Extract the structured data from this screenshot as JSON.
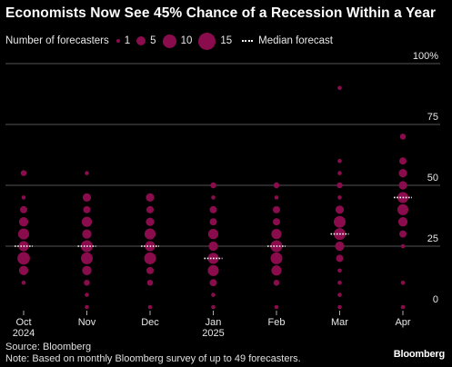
{
  "title": "Economists Now See 45% Chance of a Recession Within a Year",
  "legend": {
    "size_label": "Number of forecasters",
    "sizes": [
      1,
      5,
      10,
      15
    ],
    "size_labels": [
      "1",
      "5",
      "10",
      "15"
    ],
    "median_label": "Median forecast"
  },
  "source": "Source: Bloomberg",
  "note": "Note: Based on monthly Bloomberg survey of up to 49 forecasters.",
  "brand": "Bloomberg",
  "colors": {
    "bubble": "#8a0c4d",
    "grid": "#555555",
    "median": "#ffffff",
    "background": "#000000"
  },
  "chart_data": {
    "type": "scatter",
    "title": "Economists Now See 45% Chance of a Recession Within a Year",
    "xlabel": "",
    "ylabel": "",
    "ylim": [
      0,
      100
    ],
    "y_ticks": [
      0,
      25,
      50,
      75,
      100
    ],
    "y_tick_labels": [
      "0",
      "25",
      "50",
      "75",
      "100%"
    ],
    "grid": true,
    "categories": [
      "Oct 2024",
      "Nov",
      "Dec",
      "Jan 2025",
      "Feb",
      "Mar",
      "Apr"
    ],
    "x_tick_labels": [
      [
        "Oct",
        "2024"
      ],
      [
        "Nov"
      ],
      [
        "Dec"
      ],
      [
        "Jan",
        "2025"
      ],
      [
        "Feb"
      ],
      [
        "Mar"
      ],
      [
        "Apr"
      ]
    ],
    "median": [
      25,
      25,
      25,
      20,
      25,
      30,
      45
    ],
    "bubbles": [
      [
        [
          10,
          1
        ],
        [
          15,
          5
        ],
        [
          20,
          9
        ],
        [
          25,
          6
        ],
        [
          30,
          7
        ],
        [
          35,
          5
        ],
        [
          40,
          3
        ],
        [
          45,
          1
        ],
        [
          55,
          2
        ]
      ],
      [
        [
          0,
          1
        ],
        [
          5,
          1
        ],
        [
          10,
          2
        ],
        [
          15,
          5
        ],
        [
          20,
          8
        ],
        [
          25,
          8
        ],
        [
          30,
          5
        ],
        [
          35,
          6
        ],
        [
          40,
          3
        ],
        [
          45,
          4
        ],
        [
          55,
          1
        ]
      ],
      [
        [
          0,
          1
        ],
        [
          10,
          2
        ],
        [
          15,
          3
        ],
        [
          20,
          8
        ],
        [
          25,
          6
        ],
        [
          30,
          7
        ],
        [
          35,
          4
        ],
        [
          40,
          3
        ],
        [
          45,
          4
        ]
      ],
      [
        [
          0,
          1
        ],
        [
          5,
          1
        ],
        [
          10,
          3
        ],
        [
          15,
          7
        ],
        [
          20,
          7
        ],
        [
          25,
          5
        ],
        [
          30,
          6
        ],
        [
          35,
          3
        ],
        [
          40,
          3
        ],
        [
          45,
          1
        ],
        [
          50,
          2
        ]
      ],
      [
        [
          0,
          1
        ],
        [
          10,
          2
        ],
        [
          15,
          6
        ],
        [
          20,
          8
        ],
        [
          25,
          8
        ],
        [
          30,
          6
        ],
        [
          35,
          3
        ],
        [
          40,
          3
        ],
        [
          45,
          1
        ],
        [
          50,
          2
        ]
      ],
      [
        [
          0,
          1
        ],
        [
          5,
          1
        ],
        [
          10,
          1
        ],
        [
          15,
          1
        ],
        [
          20,
          3
        ],
        [
          25,
          5
        ],
        [
          30,
          8
        ],
        [
          35,
          8
        ],
        [
          40,
          4
        ],
        [
          45,
          1
        ],
        [
          50,
          2
        ],
        [
          55,
          1
        ],
        [
          60,
          1
        ],
        [
          90,
          1
        ]
      ],
      [
        [
          0,
          1
        ],
        [
          10,
          1
        ],
        [
          25,
          1
        ],
        [
          30,
          3
        ],
        [
          35,
          5
        ],
        [
          40,
          7
        ],
        [
          45,
          7
        ],
        [
          50,
          4
        ],
        [
          55,
          4
        ],
        [
          60,
          3
        ],
        [
          70,
          2
        ]
      ]
    ]
  }
}
